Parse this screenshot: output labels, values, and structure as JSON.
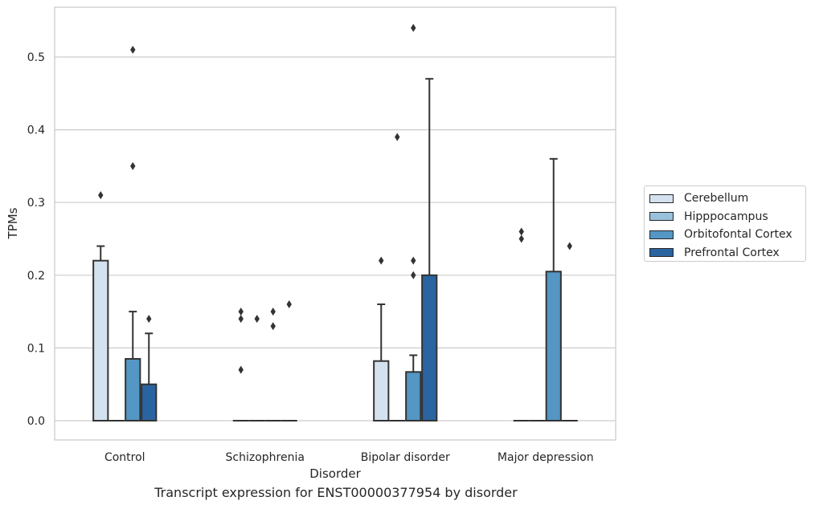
{
  "chart_data": {
    "type": "bar",
    "caption": "Transcript expression for ENST00000377954 by disorder",
    "xlabel": "Disorder",
    "ylabel": "TPMs",
    "ylim": [
      -0.026,
      0.568
    ],
    "yticks": [
      0.0,
      0.1,
      0.2,
      0.3,
      0.4,
      0.5
    ],
    "ytick_labels": [
      "0.0",
      "0.1",
      "0.2",
      "0.3",
      "0.4",
      "0.5"
    ],
    "grid": "horizontal",
    "legend_position": "right",
    "categories": [
      "Control",
      "Schizophrenia",
      "Bipolar disorder",
      "Major depression"
    ],
    "series": [
      {
        "name": "Cerebellum",
        "color": "#d4e2f0",
        "values": [
          0.22,
          0.0,
          0.082,
          0.0
        ],
        "error_upper": [
          0.24,
          null,
          0.16,
          null
        ],
        "outliers": [
          [
            0.31
          ],
          [
            0.07,
            0.14,
            0.15
          ],
          [
            0.22
          ],
          [
            0.25,
            0.26
          ]
        ]
      },
      {
        "name": "Hipppocampus",
        "color": "#9ac1dc",
        "values": [
          0.0,
          0.0,
          0.0,
          0.0
        ],
        "error_upper": [
          null,
          null,
          null,
          null
        ],
        "outliers": [
          [],
          [
            0.14
          ],
          [
            0.39
          ],
          []
        ]
      },
      {
        "name": "Orbitofontal Cortex",
        "color": "#5496c4",
        "values": [
          0.085,
          0.0,
          0.067,
          0.205
        ],
        "error_upper": [
          0.15,
          null,
          0.09,
          0.36
        ],
        "outliers": [
          [
            0.35,
            0.51
          ],
          [
            0.13,
            0.15
          ],
          [
            0.2,
            0.22,
            0.54
          ],
          []
        ]
      },
      {
        "name": "Prefrontal Cortex",
        "color": "#2a64a0",
        "values": [
          0.05,
          0.0,
          0.2,
          0.0
        ],
        "error_upper": [
          0.12,
          null,
          0.47,
          null
        ],
        "outliers": [
          [
            0.14
          ],
          [
            0.16
          ],
          [],
          [
            0.24
          ]
        ]
      }
    ]
  }
}
